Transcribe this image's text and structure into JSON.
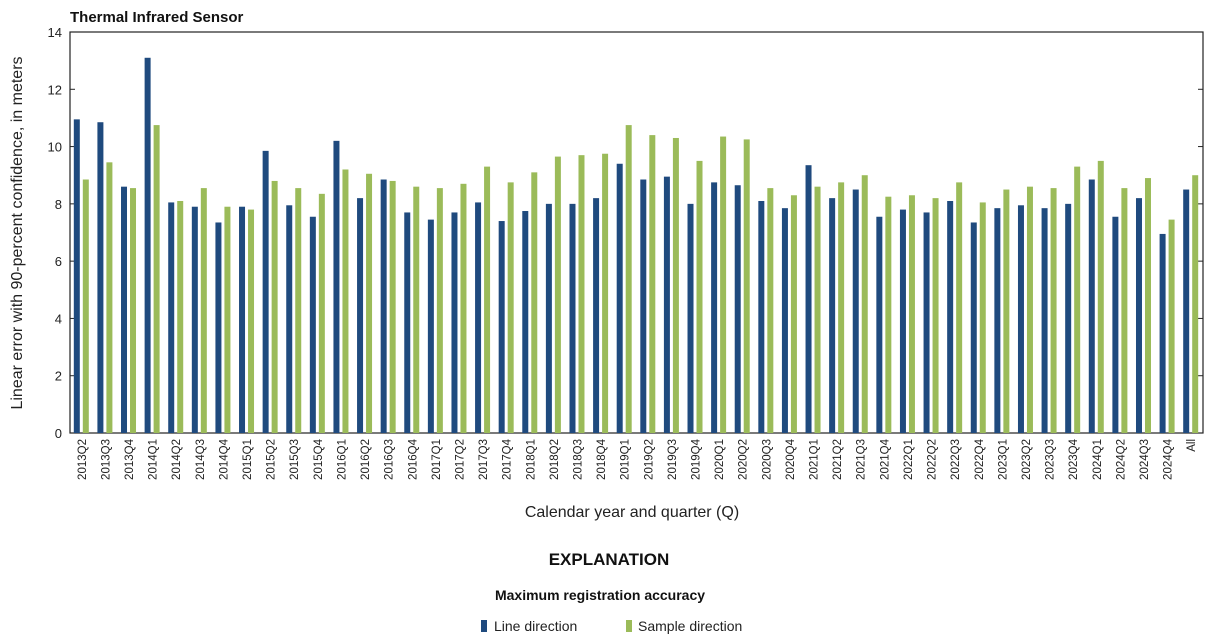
{
  "chart_data": {
    "type": "bar",
    "title": "Thermal Infrared Sensor",
    "xlabel": "Calendar year and quarter (Q)",
    "ylabel": "Linear error with 90-percent confidence, in meters",
    "ylim": [
      0,
      14
    ],
    "yticks": [
      0,
      2,
      4,
      6,
      8,
      10,
      12,
      14
    ],
    "grid": false,
    "categories": [
      "2013Q2",
      "2013Q3",
      "2013Q4",
      "2014Q1",
      "2014Q2",
      "2014Q3",
      "2014Q4",
      "2015Q1",
      "2015Q2",
      "2015Q3",
      "2015Q4",
      "2016Q1",
      "2016Q2",
      "2016Q3",
      "2016Q4",
      "2017Q1",
      "2017Q2",
      "2017Q3",
      "2017Q4",
      "2018Q1",
      "2018Q2",
      "2018Q3",
      "2018Q4",
      "2019Q1",
      "2019Q2",
      "2019Q3",
      "2019Q4",
      "2020Q1",
      "2020Q2",
      "2020Q3",
      "2020Q4",
      "2021Q1",
      "2021Q2",
      "2021Q3",
      "2021Q4",
      "2022Q1",
      "2022Q2",
      "2022Q3",
      "2022Q4",
      "2023Q1",
      "2023Q2",
      "2023Q3",
      "2023Q4",
      "2024Q1",
      "2024Q2",
      "2024Q3",
      "2024Q4",
      "All"
    ],
    "series": [
      {
        "name": "Line direction",
        "color": "#1f4a7e",
        "values": [
          10.95,
          10.85,
          8.6,
          13.1,
          8.05,
          7.9,
          7.35,
          7.9,
          9.85,
          7.95,
          7.55,
          10.2,
          8.2,
          8.85,
          7.7,
          7.45,
          7.7,
          8.05,
          7.4,
          7.75,
          8.0,
          8.0,
          8.2,
          9.4,
          8.85,
          8.95,
          8.0,
          8.75,
          8.65,
          8.1,
          7.85,
          9.35,
          8.2,
          8.5,
          7.55,
          7.8,
          7.7,
          8.1,
          7.35,
          7.85,
          7.95,
          7.85,
          8.0,
          8.85,
          7.55,
          8.2,
          6.95,
          8.5
        ]
      },
      {
        "name": "Sample direction",
        "color": "#9bbb59",
        "values": [
          8.85,
          9.45,
          8.55,
          10.75,
          8.1,
          8.55,
          7.9,
          7.8,
          8.8,
          8.55,
          8.35,
          9.2,
          9.05,
          8.8,
          8.6,
          8.55,
          8.7,
          9.3,
          8.75,
          9.1,
          9.65,
          9.7,
          9.75,
          10.75,
          10.4,
          10.3,
          9.5,
          10.35,
          10.25,
          8.55,
          8.3,
          8.6,
          8.75,
          9.0,
          8.25,
          8.3,
          8.2,
          8.75,
          8.05,
          8.5,
          8.6,
          8.55,
          9.3,
          9.5,
          8.55,
          8.9,
          7.45,
          9.0
        ]
      }
    ],
    "legend": {
      "heading": "EXPLANATION",
      "subheading": "Maximum registration accuracy",
      "placement": "bottom-center"
    }
  }
}
